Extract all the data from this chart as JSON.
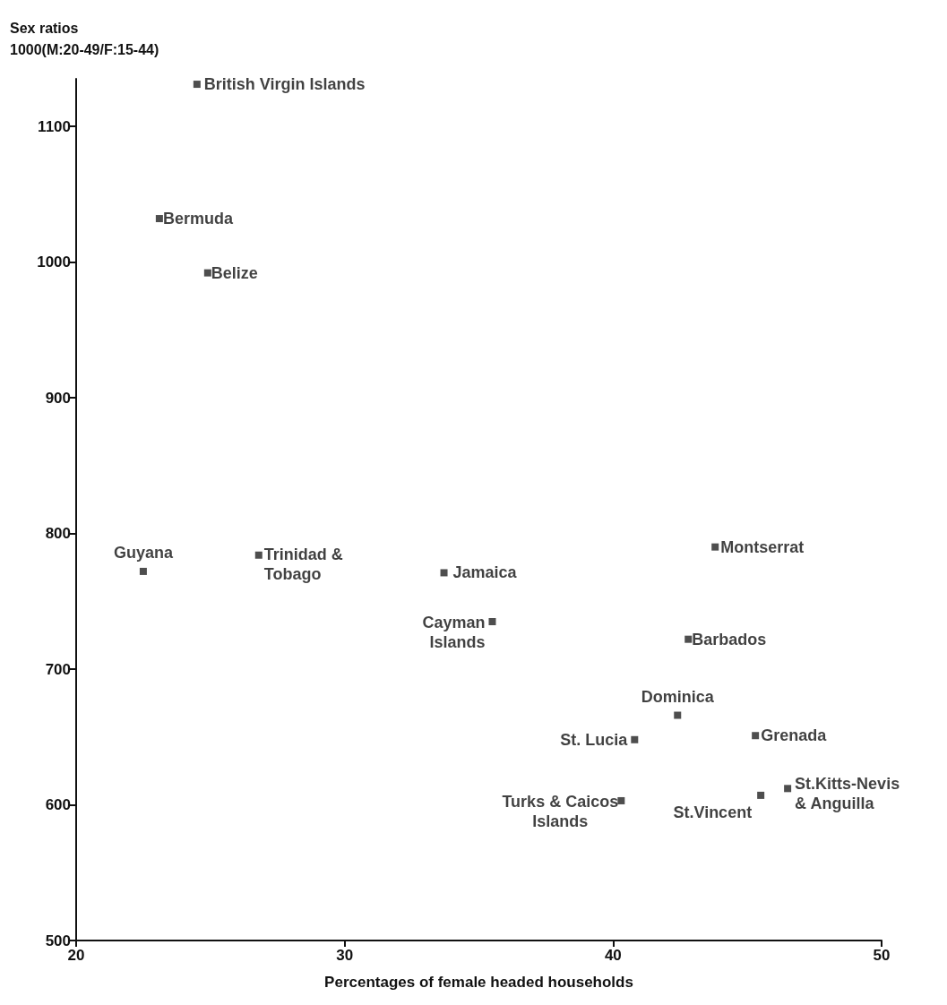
{
  "chart_data": {
    "type": "scatter",
    "xlabel": "Percentages of female headed households",
    "ylabel": "Sex ratios\n1000(M:20-49/F:15-44)",
    "xlim": [
      20,
      50
    ],
    "xticks": [
      20,
      30,
      40,
      50
    ],
    "ylim": [
      500,
      1135
    ],
    "yticks": [
      500,
      600,
      700,
      800,
      900,
      1000,
      1100
    ],
    "grid": false,
    "marker": "square",
    "series": [
      {
        "color": "#222222",
        "x": [
          24.5,
          23.1,
          24.9,
          22.5,
          26.8,
          33.7,
          35.5,
          43.8,
          42.8,
          42.4,
          40.8,
          45.3,
          40.3,
          45.5,
          46.5
        ],
        "values": [
          1131,
          1032,
          992,
          772,
          784,
          771,
          735,
          790,
          722,
          666,
          648,
          651,
          603,
          607,
          612
        ]
      }
    ],
    "annotations": [
      {
        "text": "British Virgin Islands",
        "x": 24.5,
        "y": 1131
      },
      {
        "text": "Bermuda",
        "x": 23.1,
        "y": 1032
      },
      {
        "text": "Belize",
        "x": 24.9,
        "y": 992
      },
      {
        "text": "Guyana",
        "x": 22.5,
        "y": 772
      },
      {
        "text": "Trinidad &\nTobago",
        "x": 26.8,
        "y": 784
      },
      {
        "text": "Jamaica",
        "x": 33.7,
        "y": 771
      },
      {
        "text": "Cayman\nIslands",
        "x": 35.5,
        "y": 735
      },
      {
        "text": "Montserrat",
        "x": 43.8,
        "y": 790
      },
      {
        "text": "Barbados",
        "x": 42.8,
        "y": 722
      },
      {
        "text": "Dominica",
        "x": 42.4,
        "y": 666
      },
      {
        "text": "St. Lucia",
        "x": 40.8,
        "y": 648
      },
      {
        "text": "Grenada",
        "x": 45.3,
        "y": 651
      },
      {
        "text": "Turks & Caicos\nIslands",
        "x": 40.3,
        "y": 603
      },
      {
        "text": "St.Vincent",
        "x": 45.5,
        "y": 607
      },
      {
        "text": "St.Kitts-Nevis\n& Anguilla",
        "x": 46.5,
        "y": 612
      }
    ]
  }
}
